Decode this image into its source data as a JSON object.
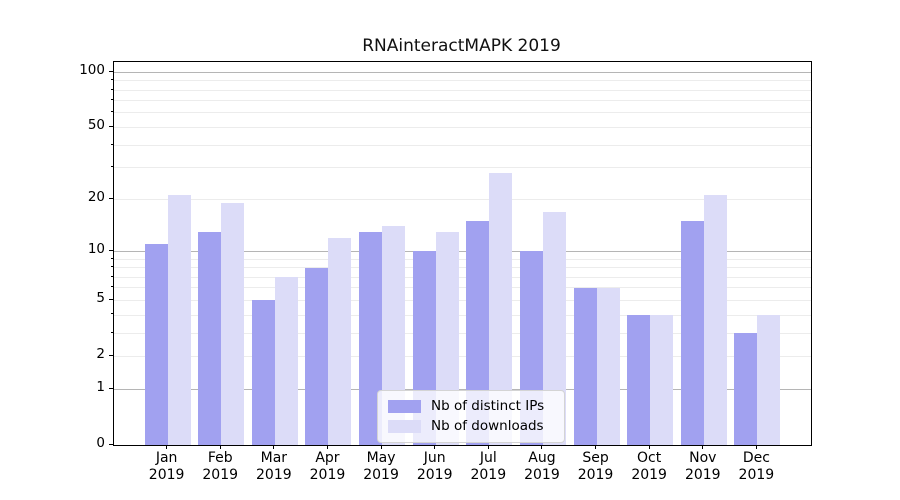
{
  "title": "RNAinteractMAPK 2019",
  "chart_data": {
    "type": "bar",
    "title": "RNAinteractMAPK 2019",
    "categories": [
      "Jan 2019",
      "Feb 2019",
      "Mar 2019",
      "Apr 2019",
      "May 2019",
      "Jun 2019",
      "Jul 2019",
      "Aug 2019",
      "Sep 2019",
      "Oct 2019",
      "Nov 2019",
      "Dec 2019"
    ],
    "series": [
      {
        "name": "Nb of distinct IPs",
        "color": "#a1a1f0",
        "values": [
          11,
          13,
          5,
          8,
          13,
          10,
          15,
          10,
          6,
          4,
          15,
          3
        ]
      },
      {
        "name": "Nb of downloads",
        "color": "#dcdcf8",
        "values": [
          21,
          19,
          7,
          12,
          14,
          13,
          28,
          17,
          6,
          4,
          21,
          4
        ]
      }
    ],
    "xlabel": "",
    "ylabel": "",
    "yscale": "log1p",
    "ylim": [
      0,
      113
    ],
    "ytick_labels": [
      "0",
      "1",
      "2",
      "5",
      "10",
      "20",
      "50",
      "100"
    ],
    "yticks": [
      0,
      1,
      2,
      5,
      10,
      20,
      50,
      100
    ],
    "major_gridlines": [
      1,
      10,
      100
    ],
    "minor_gridlines": [
      2,
      3,
      4,
      5,
      6,
      7,
      8,
      9,
      20,
      30,
      40,
      50,
      60,
      70,
      80,
      90
    ],
    "grid": true,
    "legend_position": "lower center"
  },
  "legend": {
    "items": [
      {
        "label": "Nb of distinct IPs",
        "color": "#a1a1f0"
      },
      {
        "label": "Nb of downloads",
        "color": "#dcdcf8"
      }
    ]
  }
}
